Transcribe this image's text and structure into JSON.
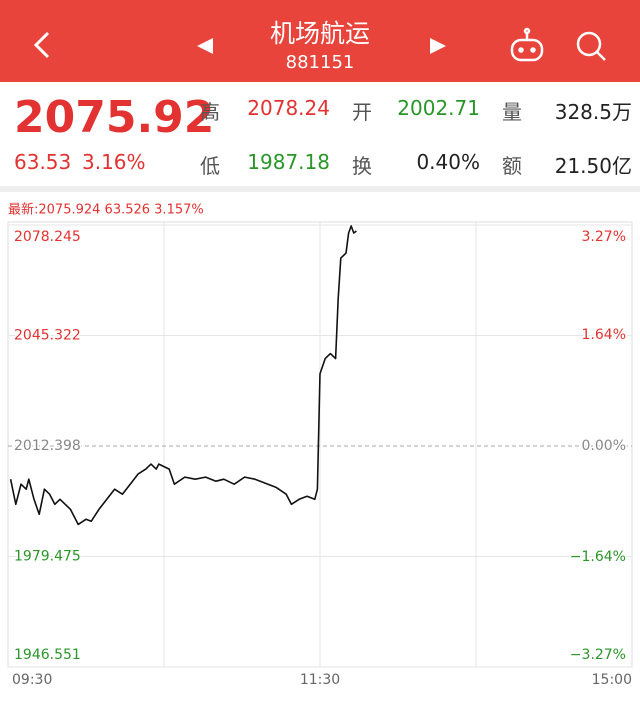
{
  "header": {
    "title": "机场航运",
    "code": "881151"
  },
  "quote": {
    "price": "2075.92",
    "change": "63.53",
    "change_pct": "3.16%",
    "rows": [
      [
        {
          "label": "高",
          "value": "2078.24"
        },
        {
          "label": "开",
          "value": "2002.71"
        },
        {
          "label": "量",
          "value": "328.5万"
        }
      ],
      [
        {
          "label": "低",
          "value": "1987.18"
        },
        {
          "label": "换",
          "value": "0.40%"
        },
        {
          "label": "额",
          "value": "21.50亿"
        }
      ]
    ]
  },
  "chart_data": {
    "type": "line",
    "latest": "最新:2075.924 63.526 3.157%",
    "x": [
      1,
      3,
      5,
      7,
      8,
      10,
      12,
      14,
      16,
      18,
      20,
      24,
      27,
      30,
      32,
      35,
      38,
      41,
      44,
      47,
      50,
      53,
      55,
      57,
      58,
      62,
      64,
      68,
      72,
      76,
      80,
      83,
      87,
      91,
      95,
      99,
      103,
      107,
      109,
      112,
      115,
      118,
      119,
      120,
      122,
      124,
      126,
      127,
      128,
      130,
      131,
      132,
      133,
      134
    ],
    "series": [
      {
        "name": "price",
        "color": "#111111",
        "values": [
          2002.52,
          1995.04,
          2001.03,
          1999.53,
          2002.52,
          1996.53,
          1992.05,
          1999.53,
          1998.03,
          1995.04,
          1996.53,
          1993.54,
          1989.05,
          1990.55,
          1989.95,
          1993.54,
          1996.53,
          1999.53,
          1998.03,
          2001.03,
          2004.02,
          2005.51,
          2007.01,
          2005.51,
          2007.01,
          2005.51,
          2001.03,
          2003.12,
          2002.52,
          2003.12,
          2001.92,
          2002.52,
          2001.03,
          2003.12,
          2002.52,
          2001.32,
          2000.12,
          1998.03,
          1995.04,
          1996.53,
          1997.43,
          1996.53,
          1999.53,
          2033.95,
          2038.44,
          2039.93,
          2038.44,
          2056.4,
          2068.37,
          2069.86,
          2075.85,
          2077.95,
          2075.85,
          2076.45
        ]
      }
    ],
    "xlim": [
      0,
      240
    ],
    "xticks": [
      {
        "value": 0,
        "label": "09:30"
      },
      {
        "value": 120,
        "label": "11:30"
      },
      {
        "value": 240,
        "label": "15:00"
      }
    ],
    "ylim": [
      1946.551,
      2078.245
    ],
    "yticks": [
      2078.245,
      2045.322,
      2012.398,
      1979.475,
      1946.551
    ],
    "y2lim": [
      -3.27,
      3.27
    ],
    "y2ticks": [
      {
        "value": 3.27,
        "label": "3.27%"
      },
      {
        "value": 1.64,
        "label": "1.64%"
      },
      {
        "value": 0,
        "label": "0.00%"
      },
      {
        "value": -1.64,
        "label": "−1.64%"
      },
      {
        "value": -3.27,
        "label": "−3.27%"
      }
    ],
    "grid": true
  }
}
